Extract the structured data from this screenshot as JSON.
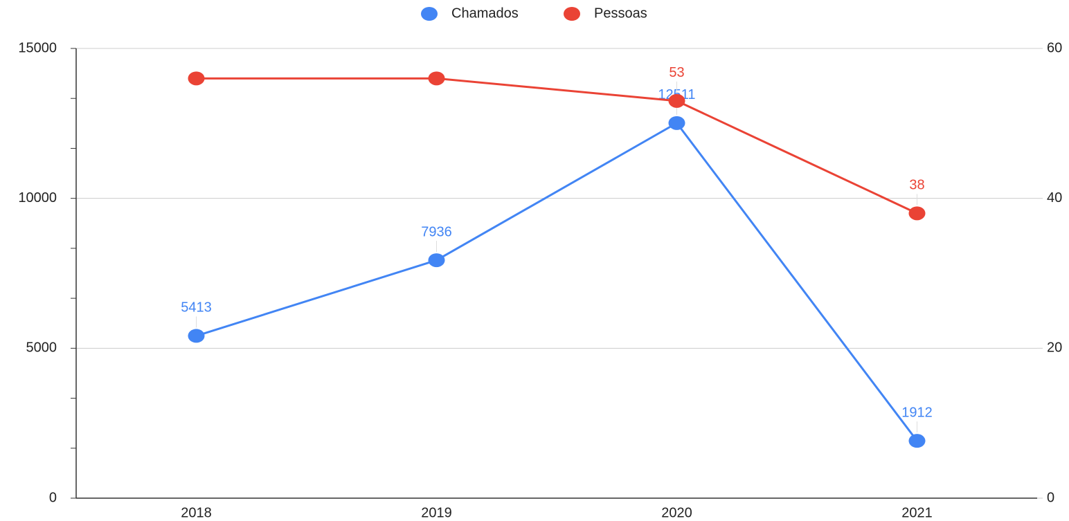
{
  "chart_data": {
    "type": "line",
    "categories": [
      "2018",
      "2019",
      "2020",
      "2021"
    ],
    "series": [
      {
        "name": "Chamados",
        "color": "#4285f4",
        "values": [
          5413,
          7936,
          12511,
          1912
        ],
        "value_labels": [
          "5413",
          "7936",
          "12511",
          "1912"
        ]
      },
      {
        "name": "Pessoas",
        "color": "#ea4335",
        "axis": "y2",
        "values": [
          56,
          56,
          53,
          38
        ],
        "value_labels": [
          null,
          null,
          "53",
          "38"
        ]
      }
    ],
    "ylim": [
      0,
      15000
    ],
    "yticks": [
      0,
      5000,
      10000,
      15000
    ],
    "y_minor_ticks": [
      1666.67,
      3333.33,
      6666.67,
      8333.33,
      11666.67,
      13333.33
    ],
    "y2lim": [
      0,
      60
    ],
    "y2ticks": [
      0,
      20,
      40,
      60
    ],
    "grid": true,
    "legend": "top"
  }
}
